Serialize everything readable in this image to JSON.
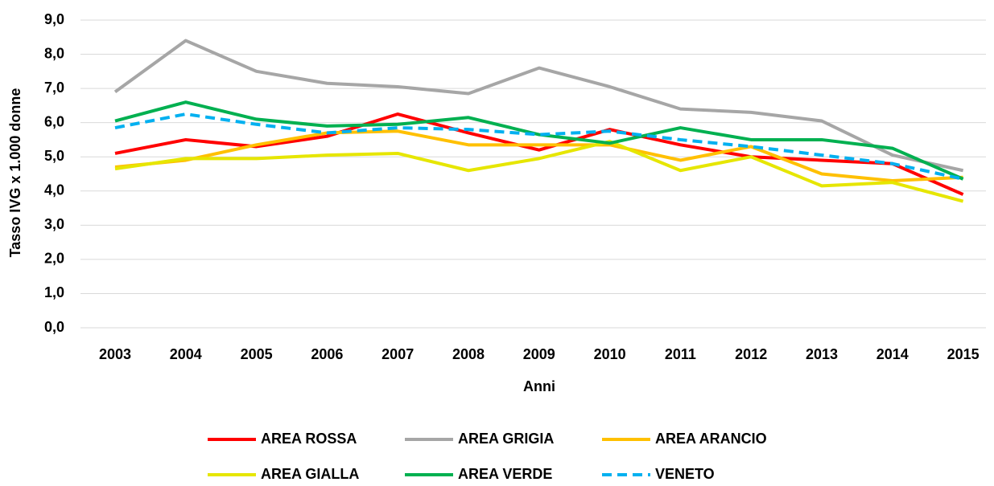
{
  "chart_data": {
    "type": "line",
    "x_label": "Anni",
    "y_label": "Tasso IVG x 1.000 donne",
    "categories": [
      "2003",
      "2004",
      "2005",
      "2006",
      "2007",
      "2008",
      "2009",
      "2010",
      "2011",
      "2012",
      "2013",
      "2014",
      "2015"
    ],
    "series": [
      {
        "name": "AREA ROSSA",
        "color": "#ff0000",
        "values": [
          5.1,
          5.5,
          5.3,
          5.6,
          6.25,
          5.7,
          5.2,
          5.8,
          5.35,
          5.0,
          4.9,
          4.8,
          3.9
        ]
      },
      {
        "name": "AREA GRIGIA",
        "color": "#a6a6a6",
        "values": [
          6.9,
          8.4,
          7.5,
          7.15,
          7.05,
          6.85,
          7.6,
          7.05,
          6.4,
          6.3,
          6.05,
          5.05,
          4.6
        ]
      },
      {
        "name": "AREA ARANCIO",
        "color": "#ffc000",
        "values": [
          4.7,
          4.9,
          5.35,
          5.7,
          5.75,
          5.35,
          5.35,
          5.35,
          4.9,
          5.3,
          4.5,
          4.3,
          4.4
        ]
      },
      {
        "name": "AREA GIALLA",
        "color": "#e6e600",
        "values": [
          4.65,
          4.95,
          4.95,
          5.05,
          5.1,
          4.6,
          4.95,
          5.45,
          4.6,
          5.0,
          4.15,
          4.25,
          3.7
        ]
      },
      {
        "name": "AREA VERDE",
        "color": "#00b050",
        "values": [
          6.05,
          6.6,
          6.1,
          5.9,
          5.95,
          6.15,
          5.65,
          5.4,
          5.85,
          5.5,
          5.5,
          5.25,
          4.35
        ]
      },
      {
        "name": "VENETO",
        "color": "#00b0f0",
        "dashed": true,
        "values": [
          5.85,
          6.25,
          5.95,
          5.7,
          5.85,
          5.8,
          5.65,
          5.75,
          5.5,
          5.3,
          5.05,
          4.8,
          4.35
        ]
      }
    ],
    "ylim": [
      0,
      9
    ],
    "yticks": [
      {
        "value": 0,
        "label": "0,0"
      },
      {
        "value": 1,
        "label": "1,0"
      },
      {
        "value": 2,
        "label": "2,0"
      },
      {
        "value": 3,
        "label": "3,0"
      },
      {
        "value": 4,
        "label": "4,0"
      },
      {
        "value": 5,
        "label": "5,0"
      },
      {
        "value": 6,
        "label": "6,0"
      },
      {
        "value": 7,
        "label": "7,0"
      },
      {
        "value": 8,
        "label": "8,0"
      },
      {
        "value": 9,
        "label": "9,0"
      }
    ],
    "grid": true
  }
}
